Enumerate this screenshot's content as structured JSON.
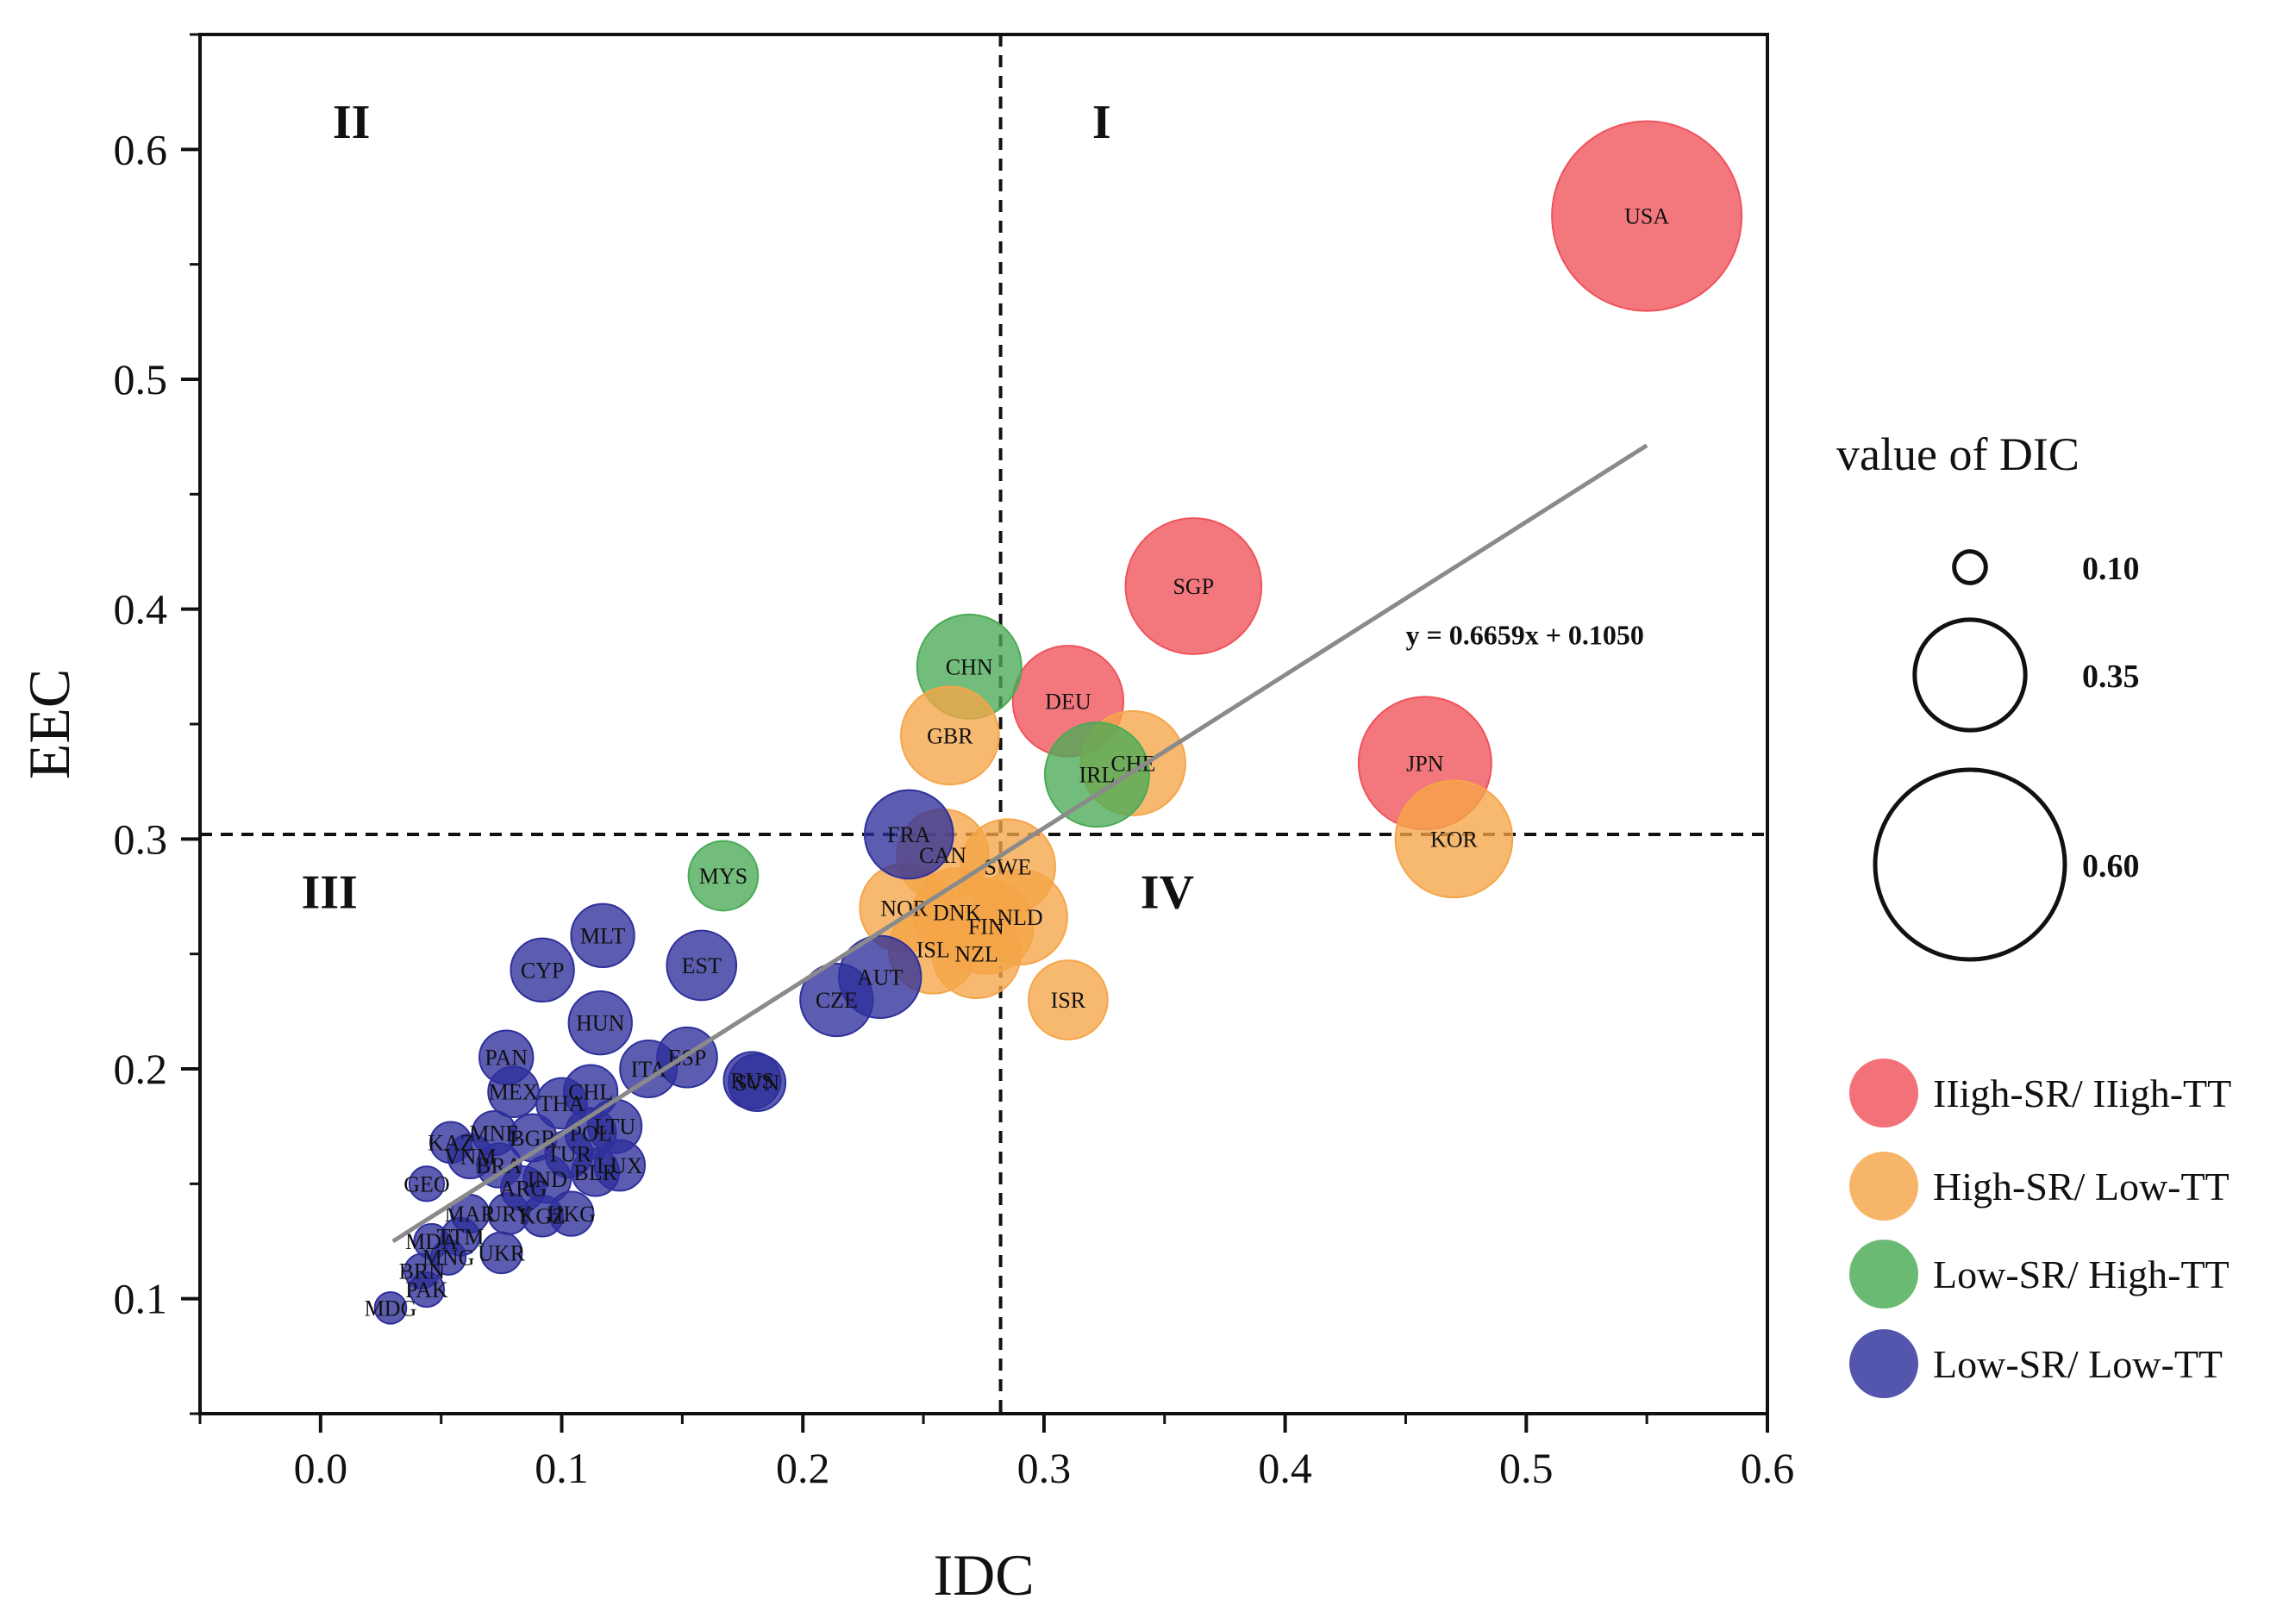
{
  "chart_data": {
    "type": "scatter",
    "subtype": "bubble",
    "xlabel": "IDC",
    "ylabel": "EEC",
    "xlim": [
      -0.05,
      0.6
    ],
    "ylim": [
      0.05,
      0.65
    ],
    "x_ticks": [
      0.0,
      0.1,
      0.2,
      0.3,
      0.4,
      0.5,
      0.6
    ],
    "x_tick_labels": [
      "0.0",
      "0.1",
      "0.2",
      "0.3",
      "0.4",
      "0.5",
      "0.6"
    ],
    "y_ticks": [
      0.1,
      0.2,
      0.3,
      0.4,
      0.5,
      0.6
    ],
    "y_tick_labels": [
      "0.1",
      "0.2",
      "0.3",
      "0.4",
      "0.5",
      "0.6"
    ],
    "grid": false,
    "divider_x": 0.282,
    "divider_y": 0.302,
    "quadrants": [
      {
        "label": "I",
        "x": 0.32,
        "y": 0.605
      },
      {
        "label": "II",
        "x": 0.005,
        "y": 0.605
      },
      {
        "label": "III",
        "x": -0.008,
        "y": 0.27
      },
      {
        "label": "IV",
        "x": 0.34,
        "y": 0.27
      }
    ],
    "trendline": {
      "equation": "y = 0.6659x + 0.1050",
      "slope": 0.6659,
      "intercept": 0.105,
      "x_start": 0.03,
      "x_end": 0.55,
      "label_x": 0.45,
      "label_y": 0.39
    },
    "categories": [
      {
        "name": "High-SR/ High-TT",
        "label": "IIigh-SR/ IIigh-TT",
        "color": "#f0525a"
      },
      {
        "name": "High-SR/ Low-TT",
        "label": "High-SR/ Low-TT",
        "color": "#f5a548"
      },
      {
        "name": "Low-SR/ High-TT",
        "label": "Low-SR/ High-TT",
        "color": "#4aab56"
      },
      {
        "name": "Low-SR/ Low-TT",
        "label": "Low-SR/ Low-TT",
        "color": "#2e309b"
      }
    ],
    "size_legend": {
      "title": "value of DIC",
      "values": [
        0.1,
        0.35,
        0.6
      ],
      "labels": [
        "0.10",
        "0.35",
        "0.60"
      ]
    },
    "points": [
      {
        "label": "USA",
        "x": 0.55,
        "y": 0.571,
        "size": 0.6,
        "cat": 0
      },
      {
        "label": "SGP",
        "x": 0.362,
        "y": 0.41,
        "size": 0.43,
        "cat": 0
      },
      {
        "label": "DEU",
        "x": 0.31,
        "y": 0.36,
        "size": 0.35,
        "cat": 0
      },
      {
        "label": "JPN",
        "x": 0.458,
        "y": 0.333,
        "size": 0.42,
        "cat": 0
      },
      {
        "label": "KOR",
        "x": 0.47,
        "y": 0.3,
        "size": 0.37,
        "cat": 1
      },
      {
        "label": "CHE",
        "x": 0.337,
        "y": 0.333,
        "size": 0.33,
        "cat": 1
      },
      {
        "label": "GBR",
        "x": 0.261,
        "y": 0.345,
        "size": 0.31,
        "cat": 1
      },
      {
        "label": "CAN",
        "x": 0.258,
        "y": 0.293,
        "size": 0.29,
        "cat": 1
      },
      {
        "label": "SWE",
        "x": 0.285,
        "y": 0.288,
        "size": 0.3,
        "cat": 1
      },
      {
        "label": "NOR",
        "x": 0.242,
        "y": 0.27,
        "size": 0.28,
        "cat": 1
      },
      {
        "label": "DNK",
        "x": 0.264,
        "y": 0.268,
        "size": 0.28,
        "cat": 1
      },
      {
        "label": "FIN",
        "x": 0.276,
        "y": 0.262,
        "size": 0.3,
        "cat": 1
      },
      {
        "label": "NLD",
        "x": 0.29,
        "y": 0.266,
        "size": 0.3,
        "cat": 1
      },
      {
        "label": "ISL",
        "x": 0.254,
        "y": 0.252,
        "size": 0.28,
        "cat": 1
      },
      {
        "label": "NZL",
        "x": 0.272,
        "y": 0.25,
        "size": 0.28,
        "cat": 1
      },
      {
        "label": "ISR",
        "x": 0.31,
        "y": 0.23,
        "size": 0.25,
        "cat": 1
      },
      {
        "label": "CHN",
        "x": 0.269,
        "y": 0.375,
        "size": 0.33,
        "cat": 2
      },
      {
        "label": "IRL",
        "x": 0.322,
        "y": 0.328,
        "size": 0.33,
        "cat": 2
      },
      {
        "label": "MYS",
        "x": 0.167,
        "y": 0.284,
        "size": 0.22,
        "cat": 2
      },
      {
        "label": "FRA",
        "x": 0.244,
        "y": 0.302,
        "size": 0.28,
        "cat": 3
      },
      {
        "label": "MLT",
        "x": 0.117,
        "y": 0.258,
        "size": 0.2,
        "cat": 3
      },
      {
        "label": "CYP",
        "x": 0.092,
        "y": 0.243,
        "size": 0.2,
        "cat": 3
      },
      {
        "label": "EST",
        "x": 0.158,
        "y": 0.245,
        "size": 0.22,
        "cat": 3
      },
      {
        "label": "AUT",
        "x": 0.232,
        "y": 0.24,
        "size": 0.26,
        "cat": 3
      },
      {
        "label": "CZE",
        "x": 0.214,
        "y": 0.23,
        "size": 0.23,
        "cat": 3
      },
      {
        "label": "HUN",
        "x": 0.116,
        "y": 0.22,
        "size": 0.2,
        "cat": 3
      },
      {
        "label": "PAN",
        "x": 0.077,
        "y": 0.205,
        "size": 0.17,
        "cat": 3
      },
      {
        "label": "ESP",
        "x": 0.152,
        "y": 0.205,
        "size": 0.19,
        "cat": 3
      },
      {
        "label": "ITA",
        "x": 0.136,
        "y": 0.2,
        "size": 0.18,
        "cat": 3
      },
      {
        "label": "RUS",
        "x": 0.179,
        "y": 0.195,
        "size": 0.18,
        "cat": 3
      },
      {
        "label": "SVN",
        "x": 0.181,
        "y": 0.194,
        "size": 0.18,
        "cat": 3
      },
      {
        "label": "MEX",
        "x": 0.08,
        "y": 0.19,
        "size": 0.16,
        "cat": 3
      },
      {
        "label": "CHL",
        "x": 0.112,
        "y": 0.19,
        "size": 0.17,
        "cat": 3
      },
      {
        "label": "THA",
        "x": 0.1,
        "y": 0.185,
        "size": 0.16,
        "cat": 3
      },
      {
        "label": "LTU",
        "x": 0.122,
        "y": 0.175,
        "size": 0.17,
        "cat": 3
      },
      {
        "label": "POL",
        "x": 0.112,
        "y": 0.172,
        "size": 0.16,
        "cat": 3
      },
      {
        "label": "BGR",
        "x": 0.088,
        "y": 0.17,
        "size": 0.15,
        "cat": 3
      },
      {
        "label": "MNE",
        "x": 0.072,
        "y": 0.172,
        "size": 0.14,
        "cat": 3
      },
      {
        "label": "KAZ",
        "x": 0.054,
        "y": 0.168,
        "size": 0.13,
        "cat": 3
      },
      {
        "label": "TUR",
        "x": 0.103,
        "y": 0.163,
        "size": 0.15,
        "cat": 3
      },
      {
        "label": "VNM",
        "x": 0.062,
        "y": 0.162,
        "size": 0.14,
        "cat": 3
      },
      {
        "label": "BRA",
        "x": 0.074,
        "y": 0.158,
        "size": 0.14,
        "cat": 3
      },
      {
        "label": "IND",
        "x": 0.094,
        "y": 0.152,
        "size": 0.15,
        "cat": 3
      },
      {
        "label": "BLR",
        "x": 0.114,
        "y": 0.155,
        "size": 0.15,
        "cat": 3
      },
      {
        "label": "LUX",
        "x": 0.124,
        "y": 0.158,
        "size": 0.16,
        "cat": 3
      },
      {
        "label": "GEO",
        "x": 0.044,
        "y": 0.15,
        "size": 0.11,
        "cat": 3
      },
      {
        "label": "ARG",
        "x": 0.084,
        "y": 0.148,
        "size": 0.14,
        "cat": 3
      },
      {
        "label": "MAR",
        "x": 0.062,
        "y": 0.137,
        "size": 0.12,
        "cat": 3
      },
      {
        "label": "URY",
        "x": 0.078,
        "y": 0.137,
        "size": 0.13,
        "cat": 3
      },
      {
        "label": "KGZ",
        "x": 0.092,
        "y": 0.136,
        "size": 0.13,
        "cat": 3
      },
      {
        "label": "HKG",
        "x": 0.104,
        "y": 0.137,
        "size": 0.14,
        "cat": 3
      },
      {
        "label": "MDA",
        "x": 0.046,
        "y": 0.125,
        "size": 0.11,
        "cat": 3
      },
      {
        "label": "TTM",
        "x": 0.058,
        "y": 0.127,
        "size": 0.12,
        "cat": 3
      },
      {
        "label": "MNG",
        "x": 0.053,
        "y": 0.118,
        "size": 0.11,
        "cat": 3
      },
      {
        "label": "UKR",
        "x": 0.075,
        "y": 0.12,
        "size": 0.13,
        "cat": 3
      },
      {
        "label": "BRN",
        "x": 0.042,
        "y": 0.112,
        "size": 0.11,
        "cat": 3
      },
      {
        "label": "PAK",
        "x": 0.044,
        "y": 0.104,
        "size": 0.11,
        "cat": 3
      },
      {
        "label": "MDG",
        "x": 0.029,
        "y": 0.096,
        "size": 0.1,
        "cat": 3
      }
    ]
  }
}
